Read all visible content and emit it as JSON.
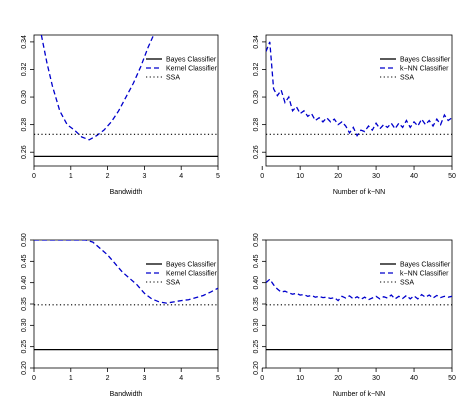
{
  "chart_data": [
    {
      "type": "line",
      "xlabel": "Bandwidth",
      "ylabel": "",
      "xlim": [
        0,
        5
      ],
      "ylim": [
        0.25,
        0.345
      ],
      "xticks": [
        0,
        1,
        2,
        3,
        4,
        5
      ],
      "yticks": [
        0.26,
        0.28,
        0.3,
        0.32,
        0.34
      ],
      "ytick_labels": [
        "0.26",
        "0.28",
        "0.30",
        "0.32",
        "0.34"
      ],
      "legend_position": "top-right",
      "series": [
        {
          "name": "Bayes Classifier",
          "style": "solid",
          "color": "#000000",
          "x": [
            0,
            5
          ],
          "y": [
            0.257,
            0.257
          ]
        },
        {
          "name": "Kernel Classifier",
          "style": "dashed",
          "color": "#0000cc",
          "x": [
            0.2,
            0.35,
            0.5,
            0.7,
            0.9,
            1.1,
            1.3,
            1.5,
            1.7,
            1.9,
            2.1,
            2.3,
            2.5,
            2.7,
            2.9,
            3.1,
            3.25
          ],
          "y": [
            0.345,
            0.325,
            0.308,
            0.29,
            0.28,
            0.276,
            0.271,
            0.269,
            0.272,
            0.276,
            0.282,
            0.29,
            0.3,
            0.31,
            0.322,
            0.336,
            0.345
          ]
        },
        {
          "name": "SSA",
          "style": "dotted",
          "color": "#000000",
          "x": [
            0,
            5
          ],
          "y": [
            0.273,
            0.273
          ]
        }
      ]
    },
    {
      "type": "line",
      "xlabel": "Number of k−NN",
      "ylabel": "",
      "xlim": [
        1,
        50
      ],
      "ylim": [
        0.25,
        0.345
      ],
      "xticks": [
        0,
        10,
        20,
        30,
        40,
        50
      ],
      "yticks": [
        0.26,
        0.28,
        0.3,
        0.32,
        0.34
      ],
      "ytick_labels": [
        "0.26",
        "0.28",
        "0.30",
        "0.32",
        "0.34"
      ],
      "legend_position": "top-right",
      "series": [
        {
          "name": "Bayes Classifier",
          "style": "solid",
          "color": "#000000",
          "x": [
            1,
            50
          ],
          "y": [
            0.257,
            0.257
          ]
        },
        {
          "name": "k−NN Classifier",
          "style": "dashed",
          "color": "#0000cc",
          "x": [
            1,
            2,
            3,
            4,
            5,
            6,
            7,
            8,
            9,
            10,
            11,
            12,
            13,
            14,
            15,
            16,
            17,
            18,
            19,
            20,
            21,
            22,
            23,
            24,
            25,
            26,
            27,
            28,
            29,
            30,
            31,
            32,
            33,
            34,
            35,
            36,
            37,
            38,
            39,
            40,
            41,
            42,
            43,
            44,
            45,
            46,
            47,
            48,
            49,
            50
          ],
          "y": [
            0.333,
            0.34,
            0.306,
            0.301,
            0.305,
            0.296,
            0.3,
            0.29,
            0.293,
            0.288,
            0.29,
            0.286,
            0.288,
            0.283,
            0.285,
            0.282,
            0.285,
            0.282,
            0.284,
            0.28,
            0.282,
            0.279,
            0.274,
            0.278,
            0.272,
            0.276,
            0.275,
            0.279,
            0.276,
            0.281,
            0.277,
            0.28,
            0.278,
            0.281,
            0.277,
            0.281,
            0.278,
            0.283,
            0.278,
            0.282,
            0.279,
            0.284,
            0.28,
            0.283,
            0.279,
            0.284,
            0.28,
            0.287,
            0.283,
            0.285
          ]
        },
        {
          "name": "SSA",
          "style": "dotted",
          "color": "#000000",
          "x": [
            1,
            50
          ],
          "y": [
            0.273,
            0.273
          ]
        }
      ]
    },
    {
      "type": "line",
      "xlabel": "Bandwidth",
      "ylabel": "",
      "xlim": [
        0,
        5
      ],
      "ylim": [
        0.2,
        0.5
      ],
      "xticks": [
        0,
        1,
        2,
        3,
        4,
        5
      ],
      "yticks": [
        0.2,
        0.25,
        0.3,
        0.35,
        0.4,
        0.45,
        0.5
      ],
      "ytick_labels": [
        "0.20",
        "0.25",
        "0.30",
        "0.35",
        "0.40",
        "0.45",
        "0.50"
      ],
      "legend_position": "top-right",
      "series": [
        {
          "name": "Bayes Classifier",
          "style": "solid",
          "color": "#000000",
          "x": [
            0,
            5
          ],
          "y": [
            0.243,
            0.243
          ]
        },
        {
          "name": "Kernel Classifier",
          "style": "dashed",
          "color": "#0000cc",
          "x": [
            0,
            0.5,
            1.0,
            1.4,
            1.6,
            1.8,
            2.0,
            2.2,
            2.4,
            2.6,
            2.8,
            3.0,
            3.2,
            3.4,
            3.6,
            3.8,
            4.0,
            4.2,
            4.4,
            4.6,
            4.8,
            5.0
          ],
          "y": [
            0.5,
            0.5,
            0.5,
            0.5,
            0.495,
            0.48,
            0.465,
            0.445,
            0.425,
            0.41,
            0.395,
            0.375,
            0.362,
            0.355,
            0.352,
            0.355,
            0.358,
            0.36,
            0.365,
            0.37,
            0.378,
            0.387
          ]
        },
        {
          "name": "SSA",
          "style": "dotted",
          "color": "#000000",
          "x": [
            0,
            5
          ],
          "y": [
            0.348,
            0.348
          ]
        }
      ]
    },
    {
      "type": "line",
      "xlabel": "Number of k−NN",
      "ylabel": "",
      "xlim": [
        1,
        50
      ],
      "ylim": [
        0.2,
        0.5
      ],
      "xticks": [
        0,
        10,
        20,
        30,
        40,
        50
      ],
      "yticks": [
        0.2,
        0.25,
        0.3,
        0.35,
        0.4,
        0.45,
        0.5
      ],
      "ytick_labels": [
        "0.20",
        "0.25",
        "0.30",
        "0.35",
        "0.40",
        "0.45",
        "0.50"
      ],
      "legend_position": "top-right",
      "series": [
        {
          "name": "Bayes Classifier",
          "style": "solid",
          "color": "#000000",
          "x": [
            1,
            50
          ],
          "y": [
            0.243,
            0.243
          ]
        },
        {
          "name": "k−NN Classifier",
          "style": "dashed",
          "color": "#0000cc",
          "x": [
            1,
            2,
            3,
            4,
            5,
            6,
            7,
            8,
            9,
            10,
            11,
            12,
            13,
            14,
            15,
            16,
            17,
            18,
            19,
            20,
            21,
            22,
            23,
            24,
            25,
            26,
            27,
            28,
            29,
            30,
            31,
            32,
            33,
            34,
            35,
            36,
            37,
            38,
            39,
            40,
            41,
            42,
            43,
            44,
            45,
            46,
            47,
            48,
            49,
            50
          ],
          "y": [
            0.4,
            0.408,
            0.395,
            0.385,
            0.378,
            0.38,
            0.376,
            0.373,
            0.375,
            0.371,
            0.372,
            0.368,
            0.37,
            0.366,
            0.368,
            0.365,
            0.366,
            0.363,
            0.365,
            0.358,
            0.368,
            0.364,
            0.369,
            0.362,
            0.367,
            0.361,
            0.366,
            0.36,
            0.364,
            0.368,
            0.362,
            0.367,
            0.364,
            0.371,
            0.362,
            0.368,
            0.363,
            0.37,
            0.362,
            0.369,
            0.362,
            0.372,
            0.366,
            0.371,
            0.364,
            0.37,
            0.365,
            0.368,
            0.366,
            0.368
          ]
        },
        {
          "name": "SSA",
          "style": "dotted",
          "color": "#000000",
          "x": [
            1,
            50
          ],
          "y": [
            0.348,
            0.348
          ]
        }
      ]
    }
  ]
}
